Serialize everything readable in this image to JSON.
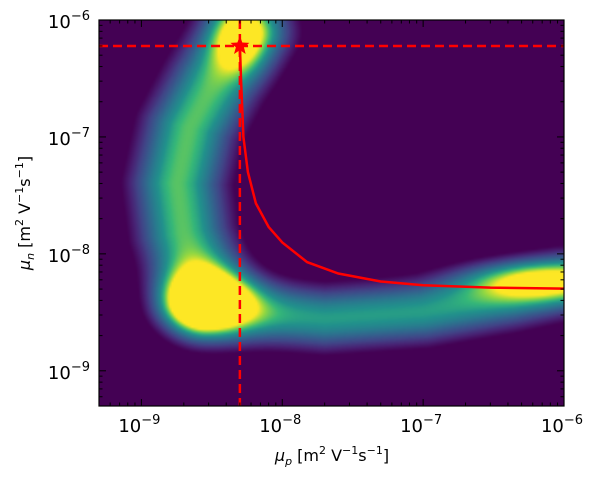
{
  "chart_data": {
    "type": "heatmap",
    "xscale": "log",
    "yscale": "log",
    "xlim": [
      5e-10,
      1e-06
    ],
    "ylim": [
      5e-10,
      1e-06
    ],
    "xlabel": {
      "base": "μ",
      "sub": "p",
      "unit_open": " [m",
      "sup1": "2",
      "unit_mid": " V",
      "sup2": "−1",
      "unit_mid2": "s",
      "sup3": "−1",
      "unit_close": "]"
    },
    "ylabel": {
      "base": "μ",
      "sub": "n",
      "unit_open": " [m",
      "sup1": "2",
      "unit_mid": " V",
      "sup2": "−1",
      "unit_mid2": "s",
      "sup3": "−1",
      "unit_close": "]"
    },
    "xticks": [
      {
        "value": 1e-09,
        "base": "10",
        "exp": "−9"
      },
      {
        "value": 1e-08,
        "base": "10",
        "exp": "−8"
      },
      {
        "value": 1e-07,
        "base": "10",
        "exp": "−7"
      },
      {
        "value": 1e-06,
        "base": "10",
        "exp": "−6"
      }
    ],
    "yticks": [
      {
        "value": 1e-09,
        "base": "10",
        "exp": "−9"
      },
      {
        "value": 1e-08,
        "base": "10",
        "exp": "−8"
      },
      {
        "value": 1e-07,
        "base": "10",
        "exp": "−7"
      },
      {
        "value": 1e-06,
        "base": "10",
        "exp": "−6"
      }
    ],
    "colormap": "viridis",
    "background_color": "#440154",
    "density_ridges": [
      {
        "name": "vertical-branch",
        "points": [
          [
            2.8e-09,
            4.5e-09
          ],
          [
            2e-09,
            1.5e-08
          ],
          [
            1.8e-09,
            4e-08
          ],
          [
            2.2e-09,
            1.2e-07
          ],
          [
            3.3e-09,
            3e-07
          ],
          [
            5.5e-09,
            8e-07
          ]
        ],
        "width": 0.24,
        "peak": 0.8
      },
      {
        "name": "horizontal-branch",
        "points": [
          [
            3e-09,
            3.4e-09
          ],
          [
            2e-08,
            2.8e-09
          ],
          [
            1e-07,
            3.2e-09
          ],
          [
            4e-07,
            4.3e-09
          ],
          [
            1e-06,
            5.5e-09
          ]
        ],
        "width": 0.2,
        "peak": 0.7
      }
    ],
    "density_peaks": [
      {
        "x": 2.7e-09,
        "y": 4.2e-09,
        "sx": 0.2,
        "sy": 0.16,
        "weight": 0.5
      },
      {
        "x": 5e-09,
        "y": 7e-07,
        "sx": 0.14,
        "sy": 0.2,
        "weight": 0.45
      },
      {
        "x": 6e-07,
        "y": 6e-09,
        "sx": 0.35,
        "sy": 0.12,
        "weight": 0.5
      }
    ],
    "overlays": {
      "vertical_dashed_line": {
        "x": 5e-09,
        "color": "#ff0000"
      },
      "horizontal_dashed_line": {
        "y": 6e-07,
        "color": "#ff0000"
      },
      "star_marker": {
        "x": 5e-09,
        "y": 6e-07,
        "color": "#ff0000"
      },
      "curve": {
        "color": "#ff0000",
        "points": [
          [
            5e-09,
            6e-07
          ],
          [
            5.1e-09,
            3e-07
          ],
          [
            5.3e-09,
            1e-07
          ],
          [
            5.7e-09,
            5e-08
          ],
          [
            6.5e-09,
            2.7e-08
          ],
          [
            8e-09,
            1.7e-08
          ],
          [
            1e-08,
            1.25e-08
          ],
          [
            1.5e-08,
            8.5e-09
          ],
          [
            2.5e-08,
            6.8e-09
          ],
          [
            5e-08,
            5.8e-09
          ],
          [
            1e-07,
            5.4e-09
          ],
          [
            3e-07,
            5.15e-09
          ],
          [
            1e-06,
            5.05e-09
          ]
        ]
      }
    }
  }
}
